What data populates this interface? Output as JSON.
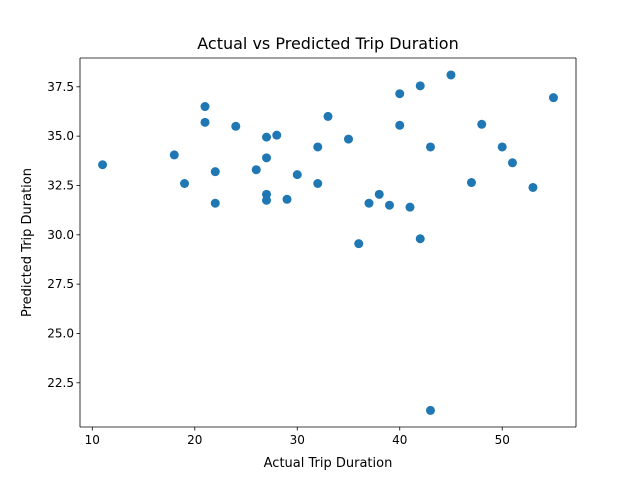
{
  "chart_data": {
    "type": "scatter",
    "title": "Actual vs Predicted Trip Duration",
    "xlabel": "Actual Trip Duration",
    "ylabel": "Predicted Trip Duration",
    "xlim": [
      8.8,
      57.2
    ],
    "ylim": [
      20.26,
      38.96
    ],
    "xticks": [
      10,
      20,
      30,
      40,
      50
    ],
    "yticks": [
      22.5,
      25.0,
      27.5,
      30.0,
      32.5,
      35.0,
      37.5
    ],
    "xtick_labels": [
      "10",
      "20",
      "30",
      "40",
      "50"
    ],
    "ytick_labels": [
      "22.5",
      "25.0",
      "27.5",
      "30.0",
      "32.5",
      "35.0",
      "37.5"
    ],
    "grid": false,
    "marker_color": "#1f77b4",
    "points": [
      {
        "x": 11,
        "y": 33.55
      },
      {
        "x": 18,
        "y": 34.05
      },
      {
        "x": 19,
        "y": 32.6
      },
      {
        "x": 21,
        "y": 36.5
      },
      {
        "x": 21,
        "y": 35.7
      },
      {
        "x": 22,
        "y": 33.2
      },
      {
        "x": 22,
        "y": 31.6
      },
      {
        "x": 24,
        "y": 35.5
      },
      {
        "x": 26,
        "y": 33.3
      },
      {
        "x": 27,
        "y": 34.95
      },
      {
        "x": 27,
        "y": 33.9
      },
      {
        "x": 27,
        "y": 32.05
      },
      {
        "x": 27,
        "y": 31.75
      },
      {
        "x": 28,
        "y": 35.05
      },
      {
        "x": 29,
        "y": 31.8
      },
      {
        "x": 30,
        "y": 33.05
      },
      {
        "x": 32,
        "y": 34.45
      },
      {
        "x": 32,
        "y": 32.6
      },
      {
        "x": 33,
        "y": 36.0
      },
      {
        "x": 35,
        "y": 34.85
      },
      {
        "x": 36,
        "y": 29.55
      },
      {
        "x": 37,
        "y": 31.6
      },
      {
        "x": 38,
        "y": 32.05
      },
      {
        "x": 39,
        "y": 31.5
      },
      {
        "x": 40,
        "y": 37.15
      },
      {
        "x": 40,
        "y": 35.55
      },
      {
        "x": 41,
        "y": 31.4
      },
      {
        "x": 42,
        "y": 37.55
      },
      {
        "x": 42,
        "y": 29.8
      },
      {
        "x": 43,
        "y": 34.45
      },
      {
        "x": 43,
        "y": 21.1
      },
      {
        "x": 45,
        "y": 38.1
      },
      {
        "x": 47,
        "y": 32.65
      },
      {
        "x": 48,
        "y": 35.6
      },
      {
        "x": 50,
        "y": 34.45
      },
      {
        "x": 51,
        "y": 33.65
      },
      {
        "x": 53,
        "y": 32.4
      },
      {
        "x": 55,
        "y": 36.95
      }
    ]
  }
}
